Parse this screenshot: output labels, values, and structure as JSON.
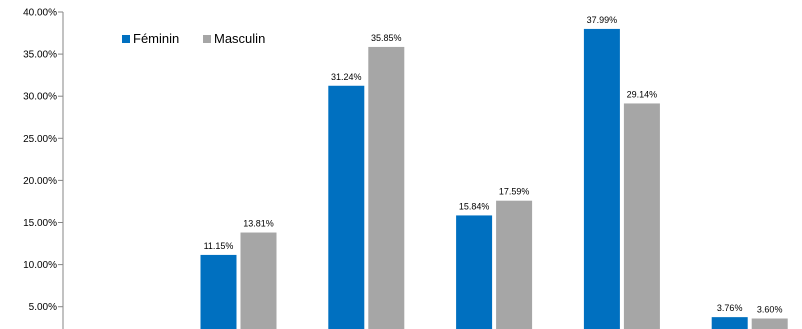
{
  "chart_data": {
    "type": "bar",
    "categories": [
      "",
      "",
      "",
      "",
      "",
      ""
    ],
    "series": [
      {
        "name": "Féminin",
        "color": "#0070C0",
        "values": [
          null,
          11.15,
          31.24,
          15.84,
          37.99,
          3.76
        ]
      },
      {
        "name": "Masculin",
        "color": "#A6A6A6",
        "values": [
          null,
          13.81,
          35.85,
          17.59,
          29.14,
          3.6
        ]
      }
    ],
    "data_labels": [
      [
        "",
        "11.15%",
        "31.24%",
        "15.84%",
        "37.99%",
        "3.76%"
      ],
      [
        "",
        "13.81%",
        "35.85%",
        "17.59%",
        "29.14%",
        "3.60%"
      ]
    ],
    "y_ticks": [
      5,
      10,
      15,
      20,
      25,
      30,
      35,
      40
    ],
    "y_tick_labels": [
      "5.00%",
      "10.00%",
      "15.00%",
      "20.00%",
      "25.00%",
      "30.00%",
      "35.00%",
      "40.00%"
    ],
    "ylim": [
      3,
      40
    ],
    "grid": false,
    "legend_position": "top-left"
  }
}
